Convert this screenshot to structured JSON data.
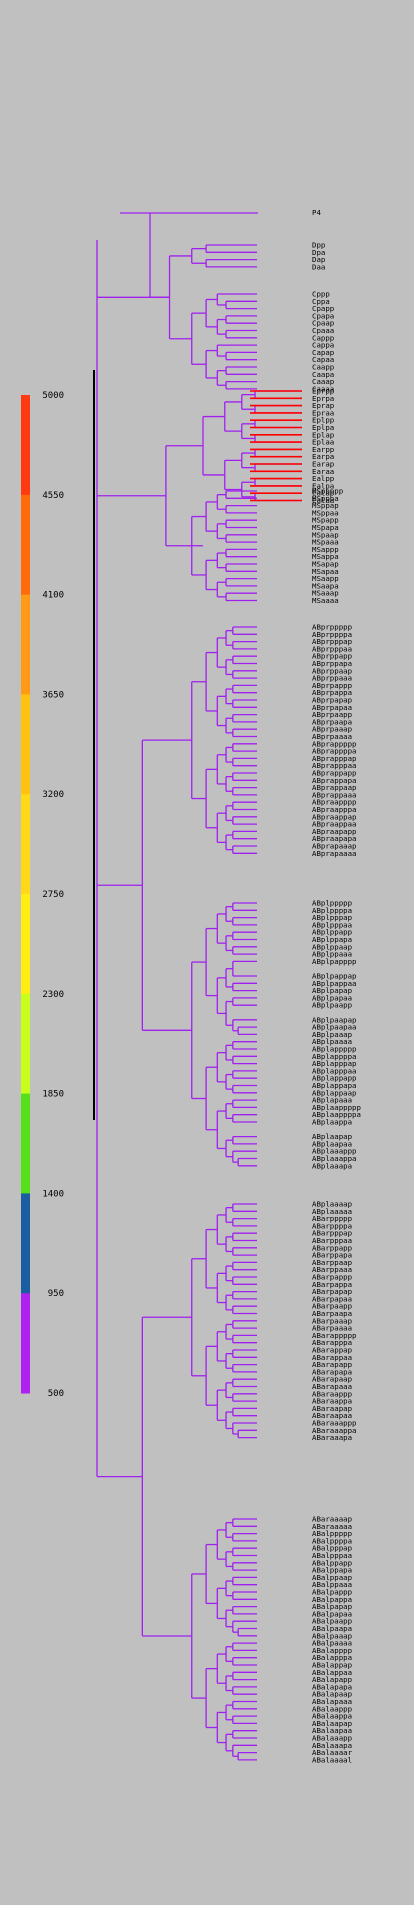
{
  "colorbar": {
    "ticks": [
      "5000",
      "4550",
      "4100",
      "3650",
      "3200",
      "2750",
      "2300",
      "1850",
      "1400",
      "950",
      "500"
    ],
    "colors": [
      "#ff3a10",
      "#ff6a0a",
      "#ff9a16",
      "#ffc20f",
      "#ffd917",
      "#ffec12",
      "#c8ff1a",
      "#55e01a",
      "#1a5ea0",
      "#b020f0"
    ]
  },
  "tree": {
    "branch_color": "#a020f0",
    "long_branch_color": "#ff0000",
    "root_label": "P4",
    "groups": [
      [
        "Dpp",
        "Dpa",
        "Dap",
        "Daa"
      ],
      [
        "Cppp",
        "Cppa",
        "Cpapp",
        "Cpapa",
        "Cpaap",
        "Cpaaa",
        "Cappp",
        "Cappa",
        "Capap",
        "Capaa",
        "Caapp",
        "Caapa",
        "Caaap",
        "Caaaa"
      ],
      [
        "Eprpp",
        "Eprpa",
        "Eprap",
        "Epraa",
        "Eplpp",
        "Eplpa",
        "Eplap",
        "Eplaa",
        "Earpp",
        "Earpa",
        "Earap",
        "Earaa",
        "Ealpp",
        "Ealpa",
        "Ealap",
        "Ealaa"
      ],
      [
        "MSppppp",
        "MSpppa",
        "MSppap",
        "MSppaa",
        "MSpapp",
        "MSpapa",
        "MSpaap",
        "MSpaaa",
        "MSappp",
        "MSappa",
        "MSapap",
        "MSapaa",
        "MSaapp",
        "MSaapa",
        "MSaaap",
        "MSaaaa"
      ],
      [
        "ABprppppp",
        "ABprppppa",
        "ABprpppap",
        "ABprpppaa",
        "ABprppapp",
        "ABprppapa",
        "ABprppaap",
        "ABprppaaa",
        "ABprpappp",
        "ABprpappa",
        "ABprpapap",
        "ABprpapaa",
        "ABprpaapp",
        "ABprpaapa",
        "ABprpaaap",
        "ABprpaaaa",
        "ABprappppp",
        "ABprappppa",
        "ABprapppap",
        "ABprapppaa",
        "ABprappapp",
        "ABprappapa",
        "ABprappaap",
        "ABprappaaa",
        "ABpraapppp",
        "ABpraapppa",
        "ABpraappap",
        "ABpraappaa",
        "ABpraapapp",
        "ABpraapapa",
        "ABprapaaap",
        "ABprapaaaa"
      ],
      [
        "ABplppppp",
        "ABplppppa",
        "ABplpppap",
        "ABplpppaa",
        "ABplppapp",
        "ABplppapa",
        "ABplppaap",
        "ABplppaaa",
        "ABplpapppp",
        "",
        "ABplpappap",
        "ABplpappaa",
        "ABplpapap",
        "ABplpapaa",
        "ABplpaapp",
        "",
        "ABplpaapap",
        "ABplpaapaa",
        "ABplpaaap",
        "ABplpaaaa",
        "ABplappppp",
        "ABplappppa",
        "ABplapppap",
        "ABplapppaa",
        "ABplappapp",
        "ABplappapa",
        "ABplappaap",
        "ABplapaaa",
        "ABplaappppp",
        "ABplaappppa",
        "ABplaappa",
        "",
        "ABplaapap",
        "ABplaapaa",
        "ABplaaappp",
        "ABplaaappa",
        "ABplaaapa"
      ],
      [
        "ABplaaaap",
        "ABplaaaaa",
        "ABarppppp",
        "ABarppppa",
        "ABarpppap",
        "ABarpppaa",
        "ABarppapp",
        "ABarppapa",
        "ABarppaap",
        "ABarppaaa",
        "ABarpappp",
        "ABarpappa",
        "ABarpapap",
        "ABarpapaa",
        "ABarpaapp",
        "ABarpaapa",
        "ABarpaaap",
        "ABarpaaaa",
        "ABarappppp",
        "ABarapppa",
        "ABarappap",
        "ABarappaa",
        "ABarapapp",
        "ABarapapa",
        "ABarapaap",
        "ABarapaaa",
        "ABaraappp",
        "ABaraappa",
        "ABaraapap",
        "ABaraapaa",
        "ABaraaappp",
        "ABaraaappa",
        "ABaraaapa"
      ],
      [
        "ABaraaaap",
        "ABaraaaaa",
        "ABalppppp",
        "ABalppppa",
        "ABalpppap",
        "ABalpppaa",
        "ABalppapp",
        "ABalppapa",
        "ABalppaap",
        "ABalppaaa",
        "ABalpappp",
        "ABalpappa",
        "ABalpapap",
        "ABalpapaa",
        "ABalpaapp",
        "ABalpaapa",
        "ABalpaaap",
        "ABalpaaaa",
        "ABalapppp",
        "ABalapppa",
        "ABalappap",
        "ABalappaa",
        "ABalapapp",
        "ABalapapa",
        "ABalapaap",
        "ABalapaaa",
        "ABalaappp",
        "ABalaappa",
        "ABalaapap",
        "ABalaapaa",
        "ABalaaapp",
        "ABalaaapa",
        "ABalaaaar",
        "ABalaaaal"
      ]
    ]
  }
}
